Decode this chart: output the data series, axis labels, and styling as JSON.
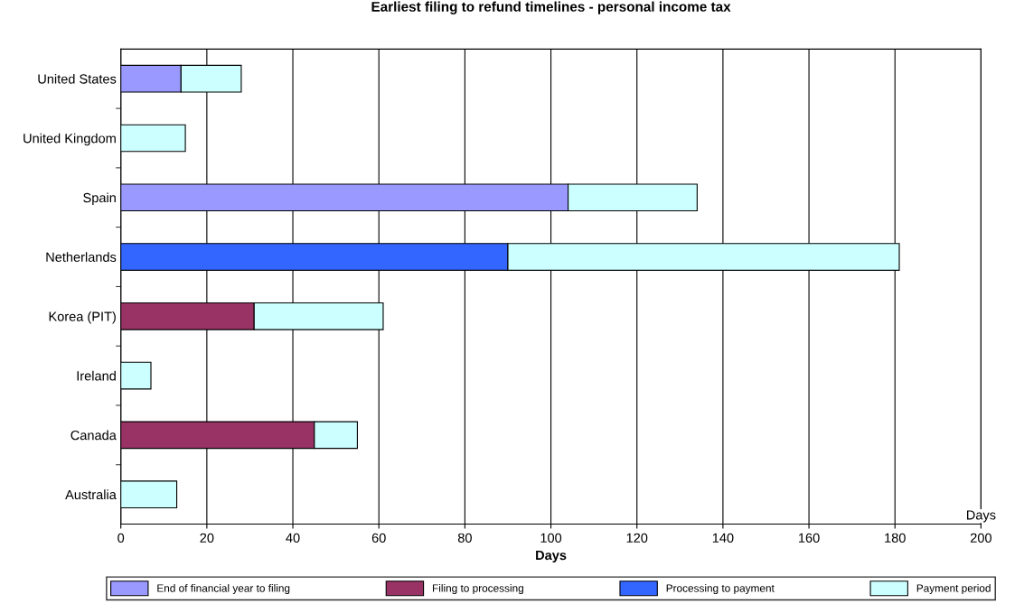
{
  "chart_data": {
    "type": "bar",
    "orientation": "horizontal",
    "stacked": true,
    "title": "Earliest filing to refund timelines - personal income tax",
    "xlabel": "Days",
    "categories": [
      "United States",
      "United Kingdom",
      "Spain",
      "Netherlands",
      "Korea (PIT)",
      "Ireland",
      "Canada",
      "Australia"
    ],
    "series": [
      {
        "name": "End of financial year to filing",
        "color": "#9999ff",
        "values": [
          14,
          0,
          104,
          0,
          0,
          0,
          0,
          0
        ]
      },
      {
        "name": "Filing to processing",
        "color": "#993366",
        "values": [
          0,
          0,
          0,
          0,
          31,
          0,
          45,
          0
        ]
      },
      {
        "name": "Processing to payment",
        "color": "#3366ff",
        "values": [
          0,
          0,
          0,
          90,
          0,
          0,
          0,
          0
        ]
      },
      {
        "name": "Payment period",
        "color": "#ccffff",
        "values": [
          14,
          15,
          30,
          91,
          30,
          7,
          10,
          13
        ]
      }
    ],
    "xlim": [
      0,
      200
    ],
    "xticks": [
      0,
      20,
      40,
      60,
      80,
      100,
      120,
      140,
      160,
      180,
      200
    ],
    "grid": "x",
    "legend": "bottom",
    "annotations": [
      "Days"
    ]
  }
}
